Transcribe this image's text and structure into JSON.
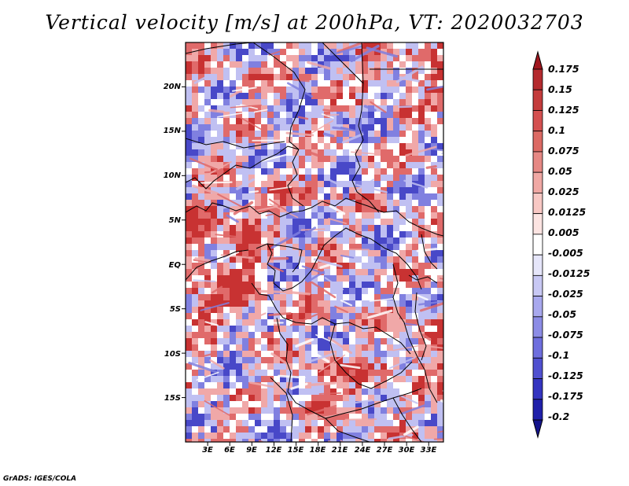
{
  "title": "Vertical velocity [m/s] at 200hPa, VT: 2020032703",
  "credit": "GrADS: IGES/COLA",
  "map": {
    "lat_labels": [
      "20N",
      "15N",
      "10N",
      "5N",
      "EQ",
      "5S",
      "10S",
      "15S"
    ],
    "lat_values": [
      20,
      15,
      10,
      5,
      0,
      -5,
      -10,
      -15
    ],
    "lon_labels": [
      "3E",
      "6E",
      "9E",
      "12E",
      "15E",
      "18E",
      "21E",
      "24E",
      "27E",
      "30E",
      "33E"
    ],
    "lon_values": [
      3,
      6,
      9,
      12,
      15,
      18,
      21,
      24,
      27,
      30,
      33
    ],
    "lon_range": [
      0,
      35
    ],
    "lat_range": [
      -20,
      25
    ]
  },
  "colorbar": {
    "labels": [
      "0.175",
      "0.15",
      "0.125",
      "0.1",
      "0.075",
      "0.05",
      "0.025",
      "0.0125",
      "0.005",
      "-0.005",
      "-0.0125",
      "-0.025",
      "-0.05",
      "-0.075",
      "-0.1",
      "-0.125",
      "-0.175",
      "-0.2"
    ],
    "colors": [
      "#a0161e",
      "#b42a2e",
      "#c43c3c",
      "#d45050",
      "#dc6a64",
      "#e68884",
      "#f0a8a4",
      "#f8c8c4",
      "#fce4e2",
      "#ffffff",
      "#e6e6fa",
      "#c8c8f4",
      "#a8a8ee",
      "#8c8ce6",
      "#6e6ede",
      "#5050d0",
      "#3434c0",
      "#2020aa",
      "#14148c"
    ]
  },
  "field_colors": {
    "strong_red": "#c83232",
    "red": "#e06a6a",
    "light_red": "#f0a8a8",
    "white": "#ffffff",
    "light_blue": "#c0c0f2",
    "blue": "#8080e0",
    "strong_blue": "#4848c8"
  }
}
